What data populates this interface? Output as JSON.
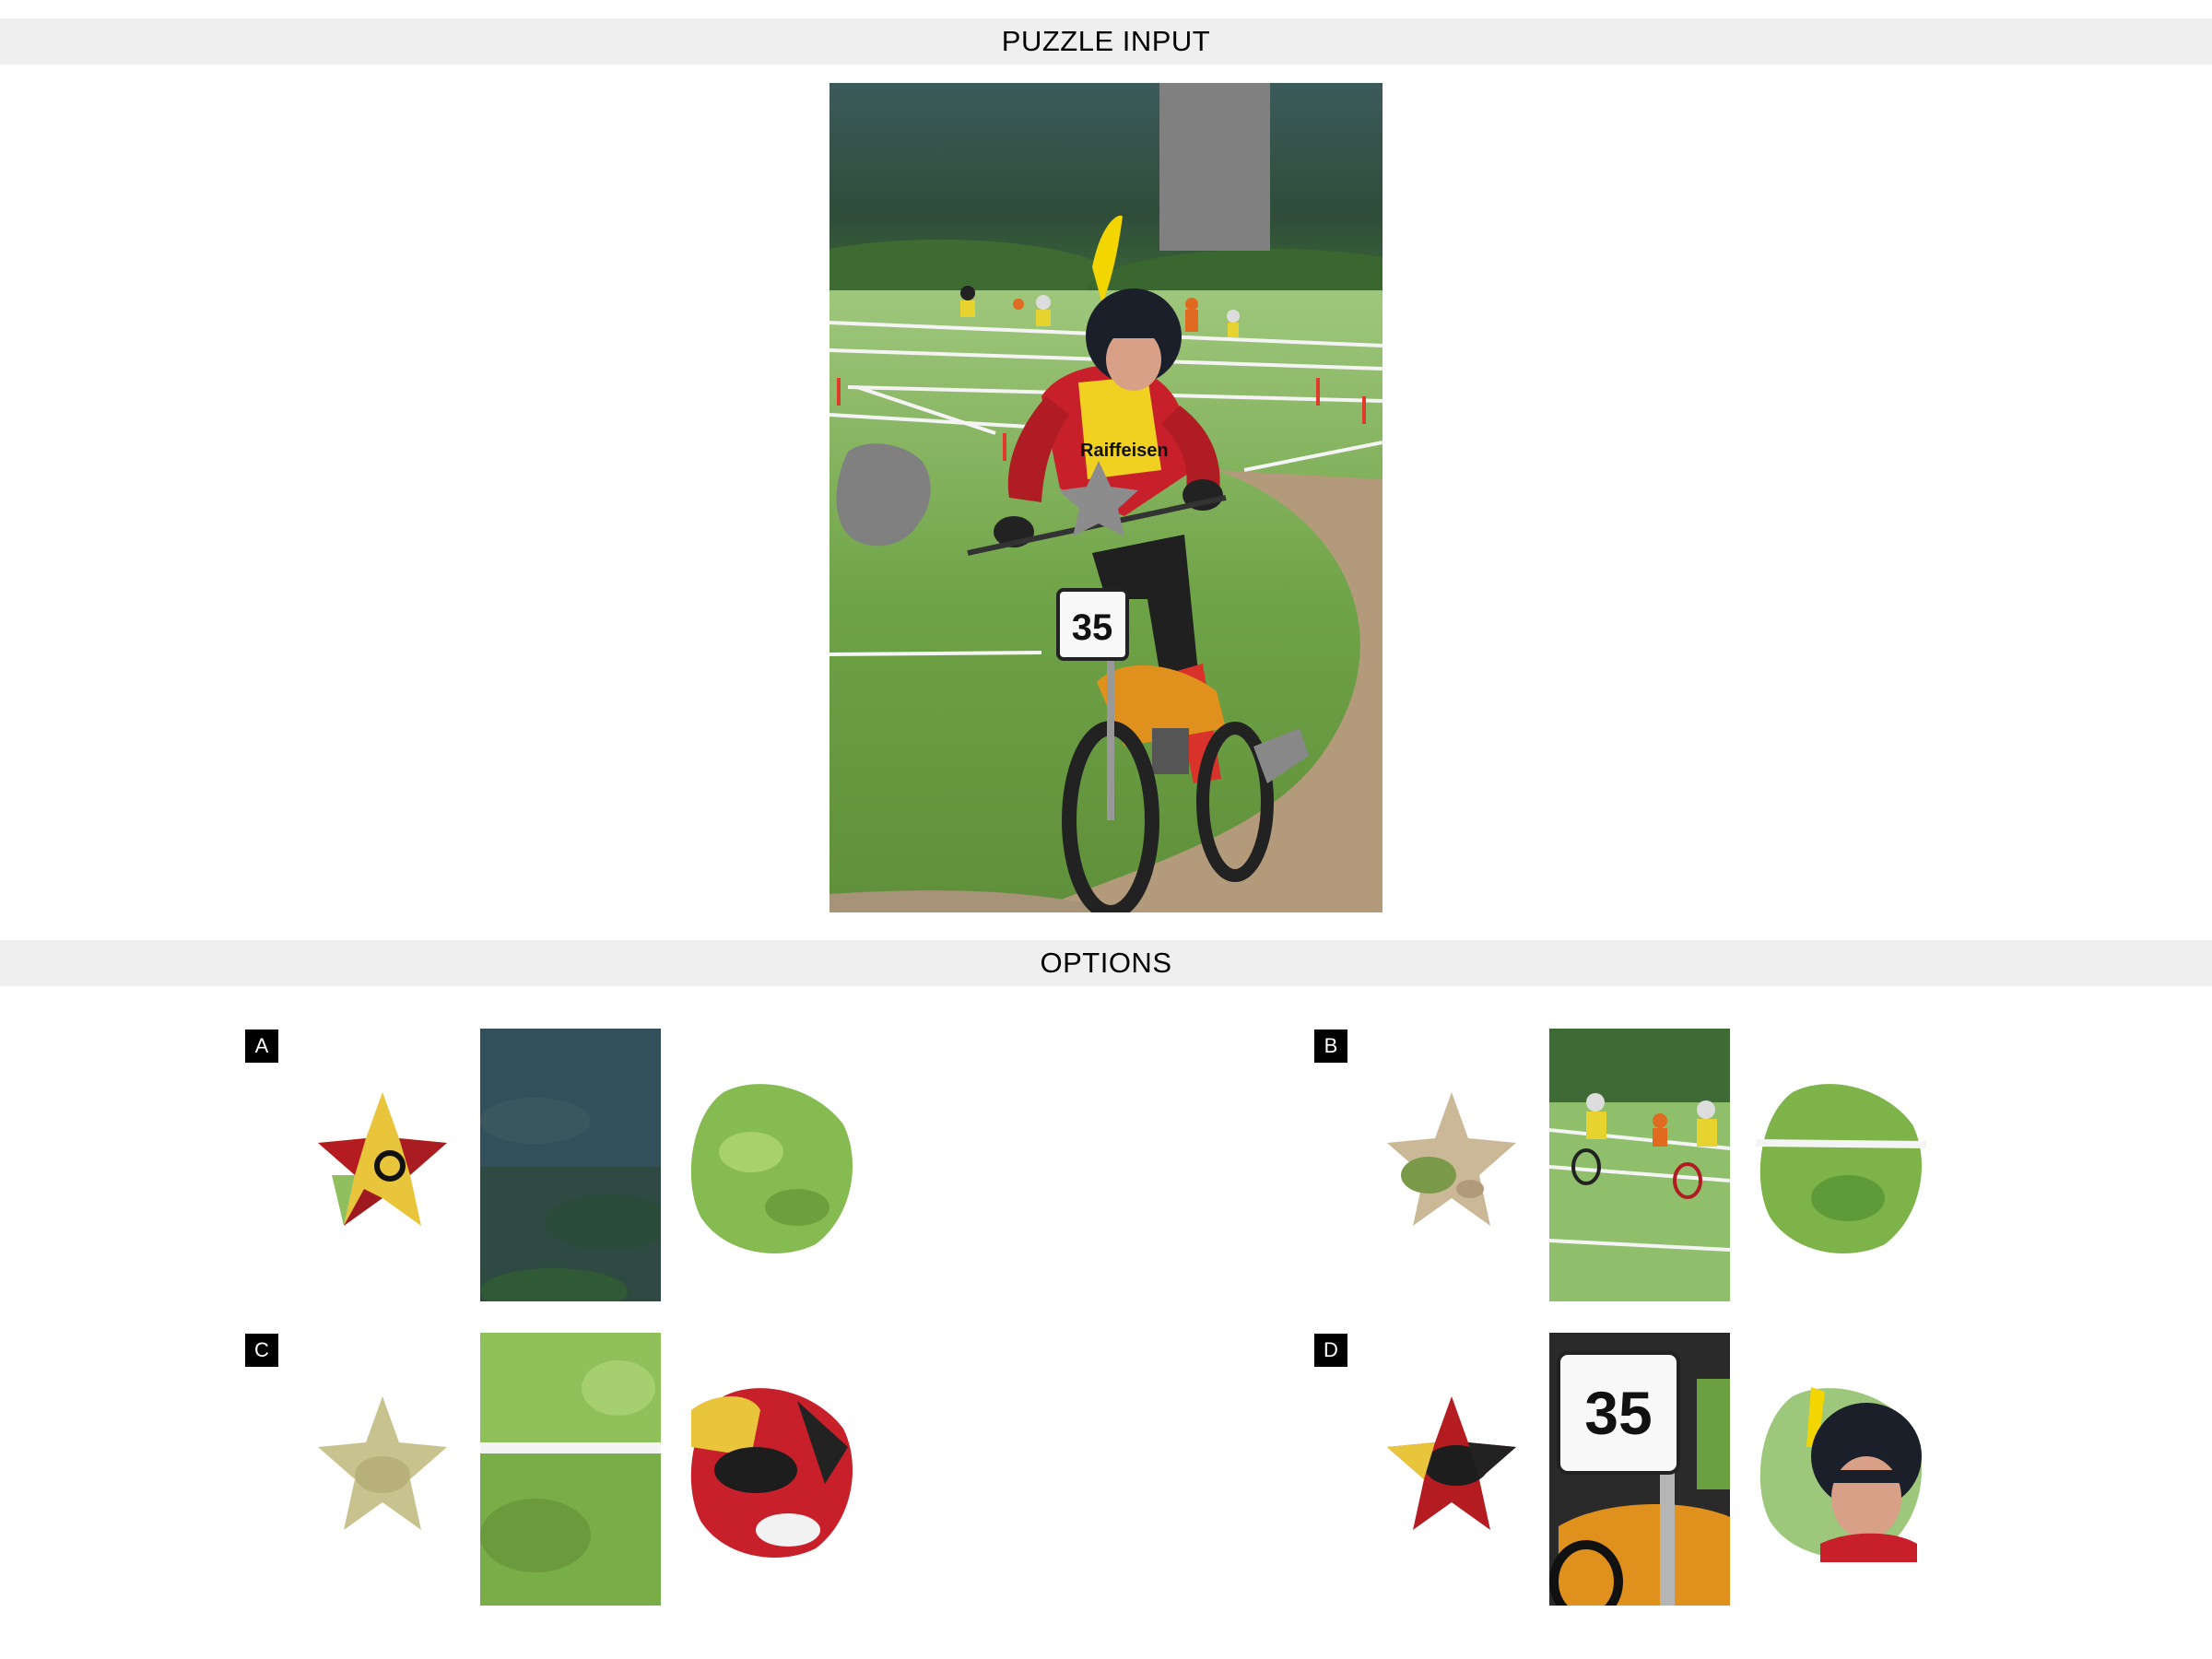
{
  "sections": {
    "puzzle_title": "PUZZLE INPUT",
    "options_title": "OPTIONS"
  },
  "puzzle": {
    "bib_number": "35",
    "sponsor_text": "Raiffeisen",
    "missing_piece_color": "#808080"
  },
  "options": [
    {
      "label": "A",
      "pieces": [
        "star: yellow vest with black letter",
        "rectangle: dark forested hillside",
        "blob: green grass"
      ]
    },
    {
      "label": "B",
      "pieces": [
        "star: dirt and grass",
        "rectangle: background riders on field",
        "blob: grass with white tape"
      ]
    },
    {
      "label": "C",
      "pieces": [
        "star: dry grass",
        "rectangle: grass with white tape",
        "blob: gloved hand on handlebar"
      ]
    },
    {
      "label": "D",
      "pieces": [
        "star: red and black glove",
        "rectangle: number plate 35 and orange fork",
        "blob: helmeted rider face"
      ]
    }
  ],
  "option_labels": [
    "A",
    "B",
    "C",
    "D"
  ],
  "plate_number": "35"
}
